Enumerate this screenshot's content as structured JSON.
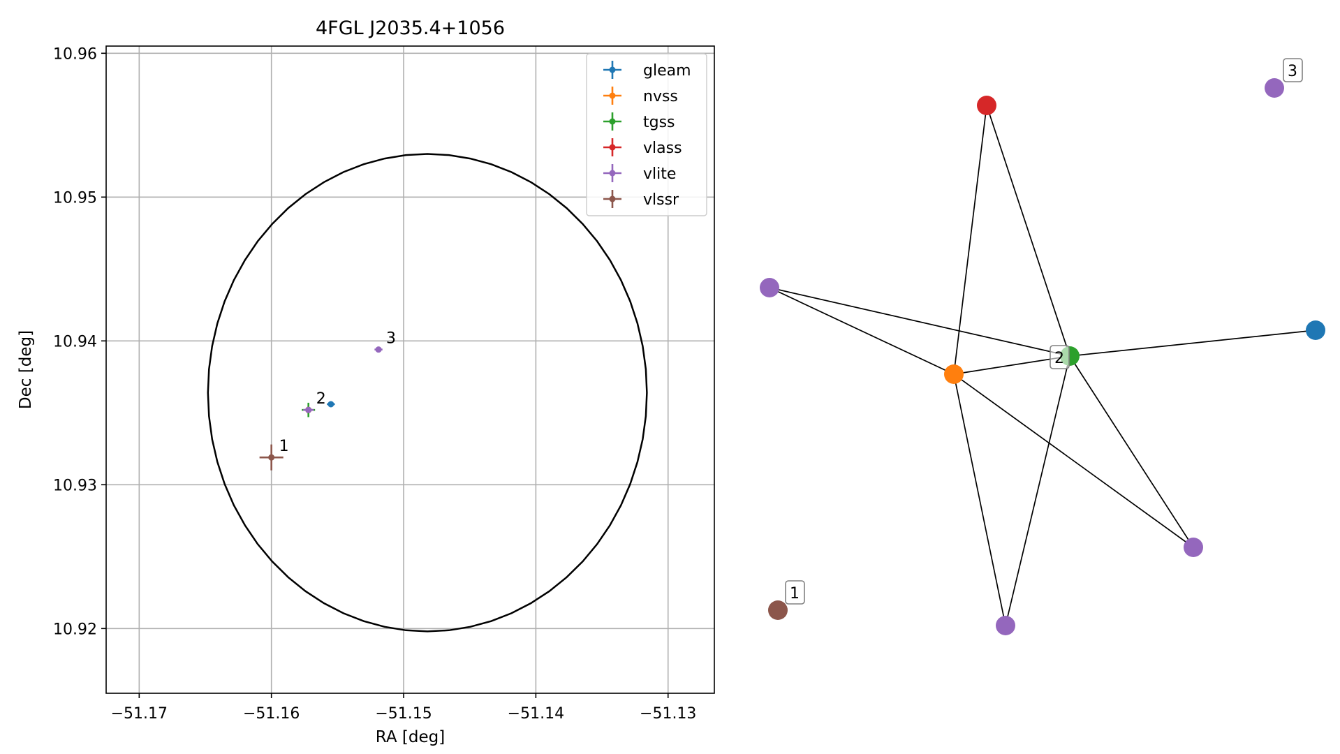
{
  "chart_data": [
    {
      "type": "scatter",
      "title": "4FGL J2035.4+1056",
      "xlabel": "RA [deg]",
      "ylabel": "Dec [deg]",
      "xlim": [
        -51.1725,
        -51.1265
      ],
      "ylim": [
        10.9155,
        10.9605
      ],
      "xticks": [
        -51.17,
        -51.16,
        -51.15,
        -51.14,
        -51.13
      ],
      "xtick_labels": [
        "−51.17",
        "−51.16",
        "−51.15",
        "−51.14",
        "−51.13"
      ],
      "yticks": [
        10.92,
        10.93,
        10.94,
        10.95,
        10.96
      ],
      "ytick_labels": [
        "10.92",
        "10.93",
        "10.94",
        "10.95",
        "10.96"
      ],
      "grid": true,
      "legend_position": "top-right",
      "circle": {
        "center": [
          -51.1482,
          10.9364
        ],
        "radius_deg": 0.0166
      },
      "series": [
        {
          "name": "gleam",
          "color": "#1f77b4",
          "points": [
            {
              "x": -51.1555,
              "y": 10.9356,
              "xerr": 0.0003,
              "yerr": 0.0002
            }
          ]
        },
        {
          "name": "nvss",
          "color": "#ff7f0e",
          "points": [
            {
              "x": -51.1572,
              "y": 10.9352,
              "xerr": 0.0003,
              "yerr": 0.0003
            }
          ]
        },
        {
          "name": "tgss",
          "color": "#2ca02c",
          "points": [
            {
              "x": -51.1572,
              "y": 10.9352,
              "xerr": 0.0005,
              "yerr": 0.0005
            }
          ]
        },
        {
          "name": "vlass",
          "color": "#d62728",
          "points": [
            {
              "x": -51.1572,
              "y": 10.9352,
              "xerr": 0.0001,
              "yerr": 0.0001
            }
          ]
        },
        {
          "name": "vlite",
          "color": "#9467bd",
          "points": [
            {
              "x": -51.1572,
              "y": 10.9352,
              "xerr": 0.0004,
              "yerr": 0.0002
            },
            {
              "x": -51.1519,
              "y": 10.9394,
              "xerr": 0.0003,
              "yerr": 0.0002
            }
          ]
        },
        {
          "name": "vlssr",
          "color": "#8c564b",
          "points": [
            {
              "x": -51.16,
              "y": 10.9319,
              "xerr": 0.0009,
              "yerr": 0.0009
            }
          ]
        }
      ],
      "annotations": [
        {
          "text": "1",
          "x": -51.16,
          "y": 10.9319
        },
        {
          "text": "2",
          "x": -51.1572,
          "y": 10.9352
        },
        {
          "text": "3",
          "x": -51.1519,
          "y": 10.9394
        }
      ]
    },
    {
      "type": "network",
      "nodes": [
        {
          "id": "vlass",
          "color": "#d62728"
        },
        {
          "id": "vlite_a",
          "color": "#9467bd"
        },
        {
          "id": "nvss",
          "color": "#ff7f0e"
        },
        {
          "id": "tgss",
          "color": "#2ca02c"
        },
        {
          "id": "gleam",
          "color": "#1f77b4"
        },
        {
          "id": "vlite_b",
          "color": "#9467bd"
        },
        {
          "id": "vlite_c",
          "color": "#9467bd"
        },
        {
          "id": "vlssr",
          "color": "#8c564b"
        },
        {
          "id": "vlite_d",
          "color": "#9467bd"
        }
      ],
      "edges": [
        [
          "vlass",
          "nvss"
        ],
        [
          "vlass",
          "tgss"
        ],
        [
          "vlite_a",
          "nvss"
        ],
        [
          "vlite_a",
          "tgss"
        ],
        [
          "nvss",
          "tgss"
        ],
        [
          "nvss",
          "vlite_c"
        ],
        [
          "nvss",
          "vlite_b"
        ],
        [
          "tgss",
          "gleam"
        ],
        [
          "tgss",
          "vlite_b"
        ],
        [
          "tgss",
          "vlite_c"
        ]
      ],
      "labels": [
        {
          "text": "1",
          "node": "vlssr"
        },
        {
          "text": "2",
          "node": "tgss"
        },
        {
          "text": "3",
          "node": "vlite_d"
        }
      ]
    }
  ]
}
